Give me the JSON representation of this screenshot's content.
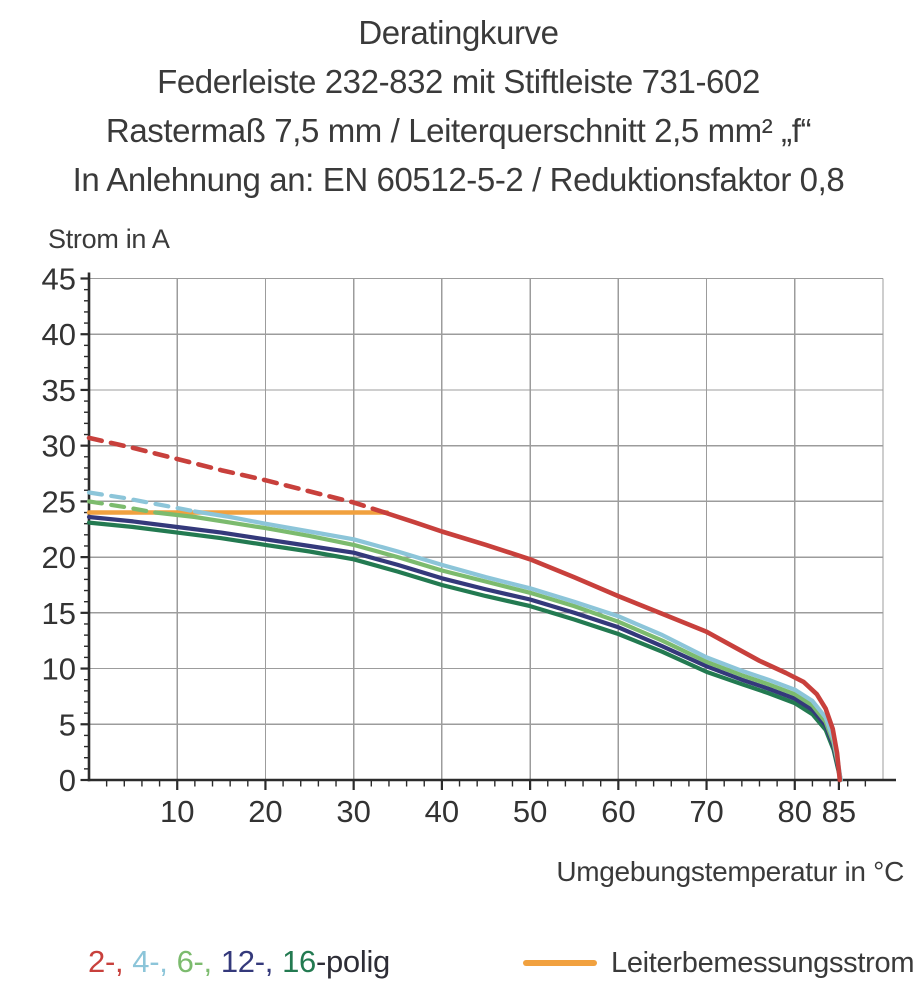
{
  "header": {
    "line1": "Deratingkurve",
    "line2": "Federleiste 232-832 mit Stiftleiste 731-602",
    "line3": "Rastermaß 7,5 mm / Leiterquerschnitt 2,5 mm² „f“",
    "line4": "In Anlehnung an: EN 60512-5-2 / Reduktionsfaktor 0,8"
  },
  "colors": {
    "text": "#3a3a3a",
    "tick_text": "#333333",
    "grid": "#9c9c9c",
    "axis": "#2b2b2b",
    "background": "#ffffff"
  },
  "chart_data": {
    "type": "line",
    "title": "Deratingkurve",
    "xlabel": "Umgebungstemperatur in °C",
    "ylabel": "Strom in A",
    "xlim": [
      0,
      90
    ],
    "ylim": [
      0,
      45
    ],
    "grid": true,
    "x_major_ticks": [
      10,
      20,
      30,
      40,
      50,
      60,
      70,
      80,
      85
    ],
    "x_grid_step": 10,
    "x_minor_step": 2,
    "y_major_ticks": [
      0,
      5,
      10,
      15,
      20,
      25,
      30,
      35,
      40,
      45
    ],
    "y_minor_step": 1,
    "rated_current_a": 24,
    "legend_position": "bottom",
    "series": [
      {
        "name": "2-polig",
        "color": "#c8403c",
        "width": 4.6,
        "segments": [
          {
            "style": "dashed",
            "points": [
              [
                0,
                30.7
              ],
              [
                5,
                29.8
              ],
              [
                10,
                28.8
              ],
              [
                15,
                27.8
              ],
              [
                20,
                26.9
              ],
              [
                25,
                25.9
              ],
              [
                30,
                24.9
              ],
              [
                33.5,
                24
              ]
            ]
          },
          {
            "style": "solid",
            "points": [
              [
                33.5,
                24
              ],
              [
                37,
                23.1
              ],
              [
                40,
                22.3
              ],
              [
                45,
                21.1
              ],
              [
                50,
                19.8
              ],
              [
                55,
                18.2
              ],
              [
                60,
                16.5
              ],
              [
                65,
                14.9
              ],
              [
                70,
                13.3
              ],
              [
                73,
                12.0
              ],
              [
                76,
                10.7
              ],
              [
                79,
                9.6
              ],
              [
                81,
                8.8
              ],
              [
                82.5,
                7.7
              ],
              [
                83.5,
                6.4
              ],
              [
                84.3,
                4.6
              ],
              [
                84.8,
                2.4
              ],
              [
                85.1,
                0
              ]
            ]
          }
        ]
      },
      {
        "name": "4-polig",
        "color": "#8cc5d9",
        "width": 4.2,
        "segments": [
          {
            "style": "dashed",
            "points": [
              [
                0,
                25.8
              ],
              [
                4,
                25.3
              ],
              [
                8,
                24.7
              ],
              [
                12,
                24.1
              ]
            ]
          },
          {
            "style": "solid",
            "points": [
              [
                12,
                24.1
              ],
              [
                16,
                23.6
              ],
              [
                20,
                23.0
              ],
              [
                25,
                22.3
              ],
              [
                30,
                21.6
              ],
              [
                35,
                20.5
              ],
              [
                40,
                19.3
              ],
              [
                45,
                18.2
              ],
              [
                50,
                17.2
              ],
              [
                55,
                16.0
              ],
              [
                60,
                14.7
              ],
              [
                65,
                13.0
              ],
              [
                70,
                11.0
              ],
              [
                74,
                9.8
              ],
              [
                77,
                9.0
              ],
              [
                80,
                8.1
              ],
              [
                82,
                7.1
              ],
              [
                83.5,
                5.6
              ],
              [
                84.4,
                3.6
              ],
              [
                84.9,
                1.6
              ],
              [
                85.2,
                0
              ]
            ]
          }
        ]
      },
      {
        "name": "6-polig",
        "color": "#7cbb6e",
        "width": 4.2,
        "segments": [
          {
            "style": "dashed",
            "points": [
              [
                0,
                25.0
              ],
              [
                4,
                24.5
              ],
              [
                7.5,
                24.0
              ]
            ]
          },
          {
            "style": "solid",
            "points": [
              [
                7.5,
                24.0
              ],
              [
                12,
                23.6
              ],
              [
                16,
                23.1
              ],
              [
                20,
                22.6
              ],
              [
                25,
                21.9
              ],
              [
                30,
                21.1
              ],
              [
                35,
                20.0
              ],
              [
                40,
                18.8
              ],
              [
                45,
                17.8
              ],
              [
                50,
                16.8
              ],
              [
                55,
                15.6
              ],
              [
                60,
                14.2
              ],
              [
                65,
                12.5
              ],
              [
                70,
                10.6
              ],
              [
                74,
                9.4
              ],
              [
                77,
                8.6
              ],
              [
                80,
                7.7
              ],
              [
                82,
                6.7
              ],
              [
                83.5,
                5.2
              ],
              [
                84.4,
                3.3
              ],
              [
                84.9,
                1.4
              ],
              [
                85.2,
                0
              ]
            ]
          }
        ]
      },
      {
        "name": "12-polig",
        "color": "#34397b",
        "width": 4.2,
        "segments": [
          {
            "style": "solid",
            "points": [
              [
                0,
                23.6
              ],
              [
                5,
                23.2
              ],
              [
                10,
                22.7
              ],
              [
                15,
                22.2
              ],
              [
                20,
                21.6
              ],
              [
                25,
                21.0
              ],
              [
                30,
                20.4
              ],
              [
                35,
                19.3
              ],
              [
                40,
                18.1
              ],
              [
                45,
                17.1
              ],
              [
                50,
                16.2
              ],
              [
                55,
                15.0
              ],
              [
                60,
                13.7
              ],
              [
                65,
                12.0
              ],
              [
                70,
                10.2
              ],
              [
                74,
                9.0
              ],
              [
                77,
                8.2
              ],
              [
                80,
                7.3
              ],
              [
                82,
                6.3
              ],
              [
                83.5,
                4.9
              ],
              [
                84.4,
                3.0
              ],
              [
                84.9,
                1.2
              ],
              [
                85.2,
                0
              ]
            ]
          }
        ]
      },
      {
        "name": "16-polig",
        "color": "#237a51",
        "width": 4.2,
        "segments": [
          {
            "style": "solid",
            "points": [
              [
                0,
                23.1
              ],
              [
                5,
                22.7
              ],
              [
                10,
                22.2
              ],
              [
                15,
                21.7
              ],
              [
                20,
                21.1
              ],
              [
                25,
                20.5
              ],
              [
                30,
                19.8
              ],
              [
                35,
                18.7
              ],
              [
                40,
                17.5
              ],
              [
                45,
                16.5
              ],
              [
                50,
                15.6
              ],
              [
                55,
                14.4
              ],
              [
                60,
                13.1
              ],
              [
                65,
                11.5
              ],
              [
                70,
                9.7
              ],
              [
                74,
                8.6
              ],
              [
                77,
                7.8
              ],
              [
                80,
                6.9
              ],
              [
                82,
                5.9
              ],
              [
                83.5,
                4.5
              ],
              [
                84.4,
                2.7
              ],
              [
                84.9,
                1.0
              ],
              [
                85.2,
                0
              ]
            ]
          }
        ]
      },
      {
        "name": "Leiterbemessungsstrom",
        "color": "#f1a13f",
        "width": 4.4,
        "segments": [
          {
            "style": "solid",
            "points": [
              [
                0,
                24
              ],
              [
                33.8,
                24
              ]
            ]
          }
        ]
      }
    ]
  },
  "legend": {
    "poles": [
      {
        "label": "2-,",
        "color": "#c8403c"
      },
      {
        "label": "4-,",
        "color": "#8cc5d9"
      },
      {
        "label": "6-,",
        "color": "#7cbb6e"
      },
      {
        "label": "12-,",
        "color": "#34397b"
      },
      {
        "label": "16",
        "color": "#237a51"
      }
    ],
    "suffix": "-polig",
    "suffix_color": "#2d2d36",
    "rated": {
      "label": "Leiterbemessungsstrom",
      "color": "#f1a13f"
    }
  }
}
